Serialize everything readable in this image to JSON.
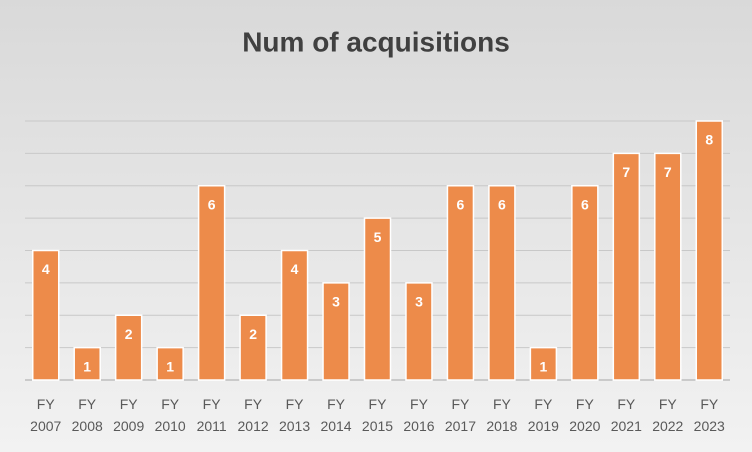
{
  "chart_data": {
    "type": "bar",
    "title": "Num of acquisitions",
    "categories": [
      "FY 2007",
      "FY 2008",
      "FY 2009",
      "FY 2010",
      "FY 2011",
      "FY 2012",
      "FY 2013",
      "FY 2014",
      "FY 2015",
      "FY 2016",
      "FY 2017",
      "FY 2018",
      "FY 2019",
      "FY 2020",
      "FY 2021",
      "FY 2022",
      "FY 2023"
    ],
    "values": [
      4,
      1,
      2,
      1,
      6,
      2,
      4,
      3,
      5,
      3,
      6,
      6,
      1,
      6,
      7,
      7,
      8
    ],
    "color": "#ed8b4a",
    "ylim": [
      0,
      8
    ],
    "yticks": [
      0,
      1,
      2,
      3,
      4,
      5,
      6,
      7,
      8
    ],
    "grid": true
  }
}
